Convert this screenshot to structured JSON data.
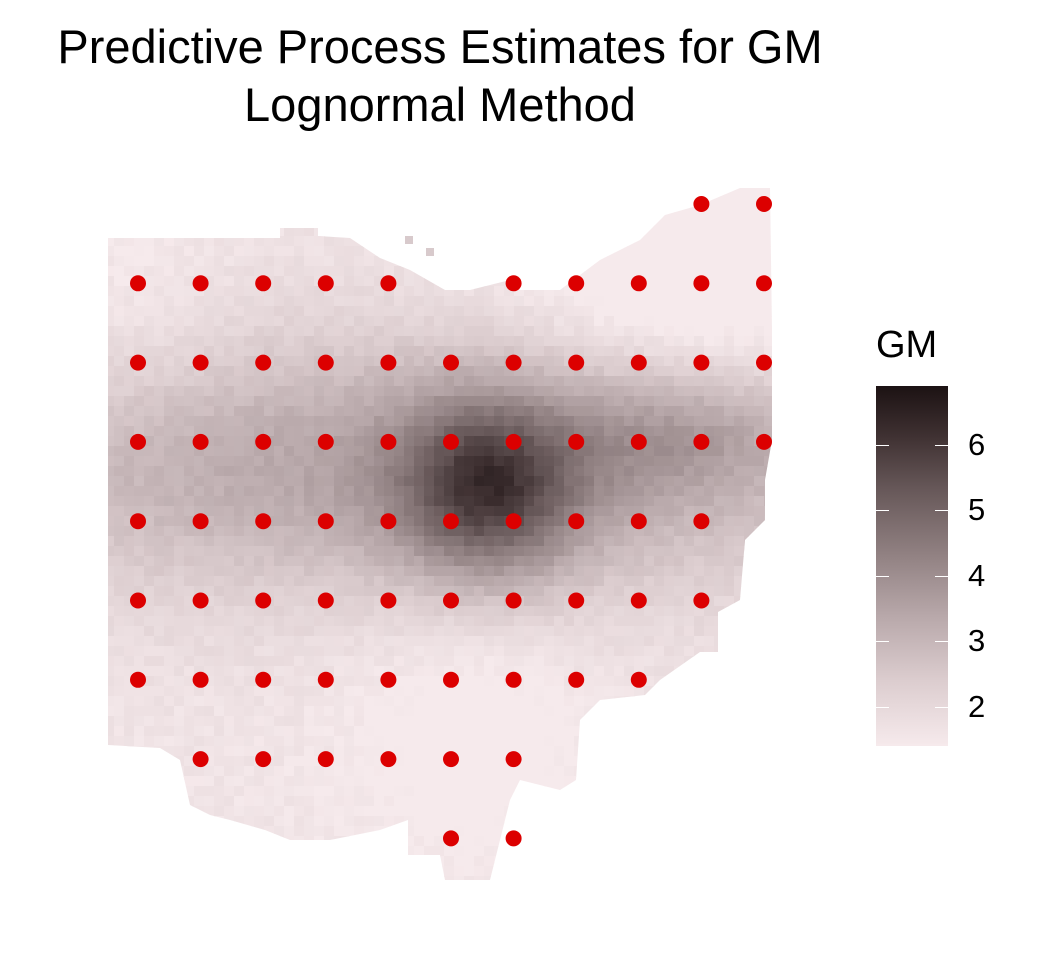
{
  "chart_data": {
    "type": "heatmap",
    "title_lines": [
      "Predictive Process Estimates for GM",
      "Lognormal Method"
    ],
    "xlabel": "",
    "ylabel": "",
    "legend": {
      "title": "GM",
      "placement": "right",
      "breaks": [
        2,
        3,
        4,
        5,
        6
      ],
      "limits": [
        1.4,
        6.9
      ],
      "colors": {
        "low": "#f6eaec",
        "high": "#1c1213"
      }
    },
    "point_color": "#dc0000",
    "knot_rows": [
      {
        "row": 1,
        "cols": [
          10,
          11
        ]
      },
      {
        "row": 2,
        "cols": [
          1,
          2,
          3,
          4,
          5,
          7,
          8,
          9,
          10,
          11
        ]
      },
      {
        "row": 3,
        "cols": [
          1,
          2,
          3,
          4,
          5,
          6,
          7,
          8,
          9,
          10,
          11
        ]
      },
      {
        "row": 4,
        "cols": [
          1,
          2,
          3,
          4,
          5,
          6,
          7,
          8,
          9,
          10,
          11
        ]
      },
      {
        "row": 5,
        "cols": [
          1,
          2,
          3,
          4,
          5,
          6,
          7,
          8,
          9,
          10
        ]
      },
      {
        "row": 6,
        "cols": [
          1,
          2,
          3,
          4,
          5,
          6,
          7,
          8,
          9,
          10
        ]
      },
      {
        "row": 7,
        "cols": [
          1,
          2,
          3,
          4,
          5,
          6,
          7,
          8,
          9
        ]
      },
      {
        "row": 8,
        "cols": [
          2,
          3,
          4,
          5,
          6,
          7
        ]
      },
      {
        "row": 9,
        "cols": [
          6,
          7
        ]
      }
    ],
    "surface": {
      "description_values": "GM estimate ranges ~1.5 (light, NE corner and south) to ~6.8 (dark, center near row 4-5, cols 6-7)",
      "peaks": [
        {
          "row": 4.6,
          "col": 6.6,
          "value": 6.8
        },
        {
          "row": 4.0,
          "col": 9.5,
          "value": 4.8
        },
        {
          "row": 4.5,
          "col": 3.0,
          "value": 4.3
        }
      ]
    }
  }
}
